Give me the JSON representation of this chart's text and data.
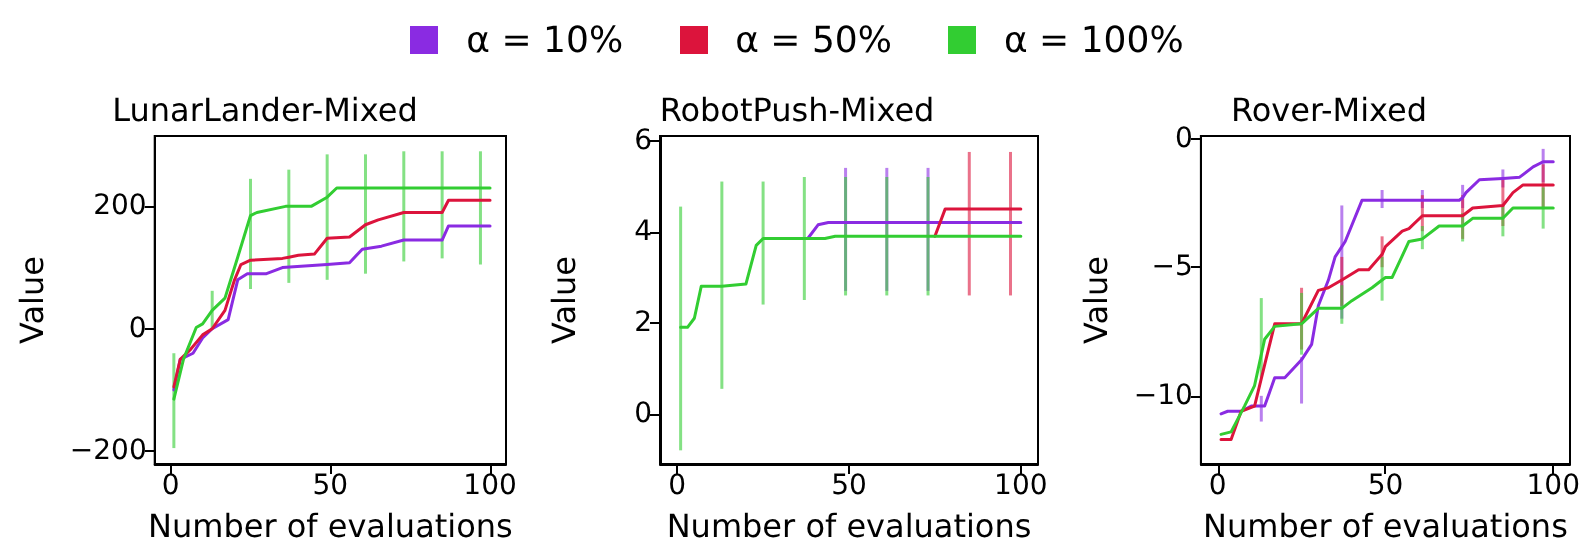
{
  "chart_data": [
    {
      "type": "line",
      "title": "LunarLander-Mixed",
      "xlabel": "Number of evaluations",
      "ylabel": "Value",
      "xlim": [
        -5,
        105
      ],
      "xticks": [
        0,
        50,
        100
      ],
      "ylim": [
        -221,
        315
      ],
      "yticks": [
        -200,
        0,
        200
      ],
      "grid": false,
      "legend": "top",
      "marker": "none",
      "line_style": "solid",
      "series": [
        {
          "name": "α = 10%",
          "color": "#8a2be2",
          "x": [
            1,
            3,
            7,
            10,
            13,
            18,
            21,
            24,
            30,
            35,
            49,
            56,
            60,
            66,
            73,
            85,
            87,
            97,
            100
          ],
          "values": [
            -100,
            -50,
            -40,
            -15,
            0,
            15,
            80,
            90,
            90,
            100,
            105,
            108,
            130,
            135,
            145,
            145,
            168,
            168,
            168
          ]
        },
        {
          "name": "α = 50%",
          "color": "#dc143c",
          "x": [
            1,
            3,
            6,
            10,
            13,
            17,
            20,
            22,
            25,
            35,
            37,
            40,
            45,
            49,
            56,
            61,
            65,
            73,
            85,
            87,
            97,
            100
          ],
          "values": [
            -95,
            -50,
            -35,
            -10,
            0,
            30,
            80,
            105,
            112,
            115,
            117,
            120,
            122,
            148,
            150,
            170,
            178,
            190,
            190,
            210,
            210,
            210
          ]
        },
        {
          "name": "α = 100%",
          "color": "#32cd32",
          "x": [
            1,
            4,
            8,
            10,
            13,
            17,
            20,
            25,
            27,
            36,
            37,
            44,
            49,
            52,
            61,
            73,
            85,
            97,
            100
          ],
          "values": [
            -115,
            -50,
            2,
            8,
            30,
            50,
            100,
            185,
            190,
            200,
            200,
            200,
            215,
            230,
            230,
            230,
            230,
            230,
            230
          ],
          "errors": [
            [
              -195,
              -40
            ],
            null,
            null,
            null,
            [
              0,
              62
            ],
            null,
            null,
            [
              65,
              245
            ],
            null,
            null,
            [
              75,
              260
            ],
            null,
            [
              80,
              285
            ],
            null,
            [
              90,
              285
            ],
            [
              110,
              290
            ],
            [
              115,
              290
            ],
            [
              105,
              290
            ],
            null
          ]
        }
      ]
    },
    {
      "type": "line",
      "title": "RobotPush-Mixed",
      "xlabel": "Number of evaluations",
      "ylabel": "Value",
      "xlim": [
        -5,
        105
      ],
      "xticks": [
        0,
        50,
        100
      ],
      "ylim": [
        -1.1,
        6.1
      ],
      "yticks": [
        0,
        2,
        4,
        6
      ],
      "grid": false,
      "marker": "none",
      "line_style": "solid",
      "series": [
        {
          "color": "#8a2be2",
          "x": [
            38,
            41,
            44,
            49,
            61,
            73,
            85,
            97,
            100
          ],
          "values": [
            3.85,
            4.15,
            4.2,
            4.2,
            4.2,
            4.2,
            4.2,
            4.2,
            4.2
          ],
          "errors": [
            null,
            null,
            null,
            [
              2.7,
              5.4
            ],
            [
              2.7,
              5.4
            ],
            [
              2.7,
              5.4
            ],
            null,
            null,
            null
          ]
        },
        {
          "color": "#dc143c",
          "x": [
            75,
            78,
            85,
            97,
            100
          ],
          "values": [
            3.9,
            4.5,
            4.5,
            4.5,
            4.5
          ],
          "errors": [
            null,
            null,
            [
              2.6,
              5.75
            ],
            [
              2.6,
              5.75
            ],
            null
          ]
        },
        {
          "color": "#32cd32",
          "x": [
            1,
            3,
            5,
            7,
            13,
            20,
            23,
            25,
            37,
            43,
            46,
            49,
            61,
            73,
            85,
            97,
            100
          ],
          "values": [
            1.9,
            1.9,
            2.1,
            2.8,
            2.8,
            2.85,
            3.7,
            3.85,
            3.85,
            3.85,
            3.9,
            3.9,
            3.9,
            3.9,
            3.9,
            3.9,
            3.9
          ],
          "errors": [
            [
              -0.8,
              4.55
            ],
            null,
            null,
            null,
            [
              0.55,
              5.1
            ],
            null,
            null,
            [
              2.4,
              5.1
            ],
            [
              2.5,
              5.2
            ],
            null,
            null,
            [
              2.6,
              5.2
            ],
            [
              2.6,
              5.2
            ],
            [
              2.6,
              5.2
            ],
            null,
            null,
            null
          ]
        }
      ]
    },
    {
      "type": "line",
      "title": "Rover-Mixed",
      "xlabel": "Number of evaluations",
      "ylabel": "Value",
      "xlim": [
        -5,
        105
      ],
      "xticks": [
        0,
        50,
        100
      ],
      "ylim": [
        -12.65,
        0.1
      ],
      "yticks": [
        -10,
        -5,
        0
      ],
      "grid": false,
      "marker": "none",
      "line_style": "solid",
      "series": [
        {
          "color": "#8a2be2",
          "x": [
            1,
            3,
            7,
            10,
            13,
            14,
            17,
            20,
            25,
            28,
            30,
            33,
            35,
            37,
            38,
            43,
            49,
            61,
            72,
            73,
            74,
            78,
            85,
            90,
            94,
            97,
            100
          ],
          "values": [
            -10.7,
            -10.6,
            -10.6,
            -10.4,
            -10.4,
            -10.4,
            -9.3,
            -9.3,
            -8.6,
            -8.0,
            -6.5,
            -5.5,
            -4.6,
            -4.2,
            -4.0,
            -2.4,
            -2.4,
            -2.4,
            -2.4,
            -2.3,
            -2.1,
            -1.6,
            -1.55,
            -1.5,
            -1.1,
            -0.9,
            -0.9
          ],
          "errors": [
            null,
            null,
            null,
            null,
            [
              -11,
              -10
            ],
            null,
            null,
            null,
            [
              -10.3,
              -8.5
            ],
            null,
            null,
            null,
            null,
            [
              -7,
              -2.6
            ],
            null,
            null,
            [
              -2.7,
              -2.0
            ],
            [
              -2.7,
              -2.0
            ],
            null,
            [
              -2.7,
              -1.8
            ],
            null,
            null,
            [
              -1.9,
              -1.2
            ],
            null,
            null,
            [
              -1.7,
              -0.4
            ],
            null
          ]
        },
        {
          "color": "#dc143c",
          "x": [
            1,
            4,
            7,
            11,
            14,
            17,
            25,
            30,
            33,
            37,
            42,
            45,
            49,
            50,
            55,
            57,
            61,
            73,
            76,
            85,
            88,
            91,
            97,
            100
          ],
          "values": [
            -11.7,
            -11.7,
            -10.6,
            -10.4,
            -8.8,
            -7.2,
            -7.2,
            -5.9,
            -5.8,
            -5.5,
            -5.1,
            -5.1,
            -4.5,
            -4.2,
            -3.6,
            -3.5,
            -3.0,
            -3.0,
            -2.7,
            -2.6,
            -2.1,
            -1.8,
            -1.8,
            -1.8
          ],
          "errors": [
            null,
            null,
            null,
            null,
            null,
            null,
            [
              -8.2,
              -5.8
            ],
            null,
            null,
            [
              -6.5,
              -4.6
            ],
            null,
            null,
            [
              -5.0,
              -3.8
            ],
            null,
            null,
            null,
            [
              -3.6,
              -2.2
            ],
            [
              -3.9,
              -2.2
            ],
            null,
            [
              -3.4,
              -1.6
            ],
            null,
            null,
            [
              -2.7,
              -1.0
            ],
            null
          ]
        },
        {
          "color": "#32cd32",
          "x": [
            1,
            4,
            8,
            11,
            13,
            14,
            17,
            25,
            30,
            37,
            40,
            46,
            49,
            50,
            52,
            57,
            61,
            66,
            73,
            76,
            85,
            88,
            97,
            100
          ],
          "values": [
            -11.5,
            -11.4,
            -10.4,
            -9.6,
            -8.4,
            -7.8,
            -7.3,
            -7.2,
            -6.6,
            -6.6,
            -6.3,
            -5.8,
            -5.5,
            -5.4,
            -5.4,
            -4.0,
            -3.9,
            -3.4,
            -3.4,
            -3.1,
            -3.1,
            -2.7,
            -2.7,
            -2.7
          ],
          "errors": [
            null,
            null,
            null,
            null,
            [
              -9.3,
              -6.2
            ],
            null,
            null,
            [
              -8.4,
              -6.0
            ],
            null,
            [
              -7.2,
              -5.7
            ],
            null,
            null,
            [
              -6.3,
              -4.6
            ],
            null,
            null,
            null,
            [
              -4.3,
              -3.4
            ],
            null,
            [
              -4.0,
              -2.9
            ],
            null,
            [
              -3.8,
              -2.6
            ],
            null,
            [
              -3.5,
              -1.9
            ],
            null
          ]
        }
      ]
    }
  ]
}
